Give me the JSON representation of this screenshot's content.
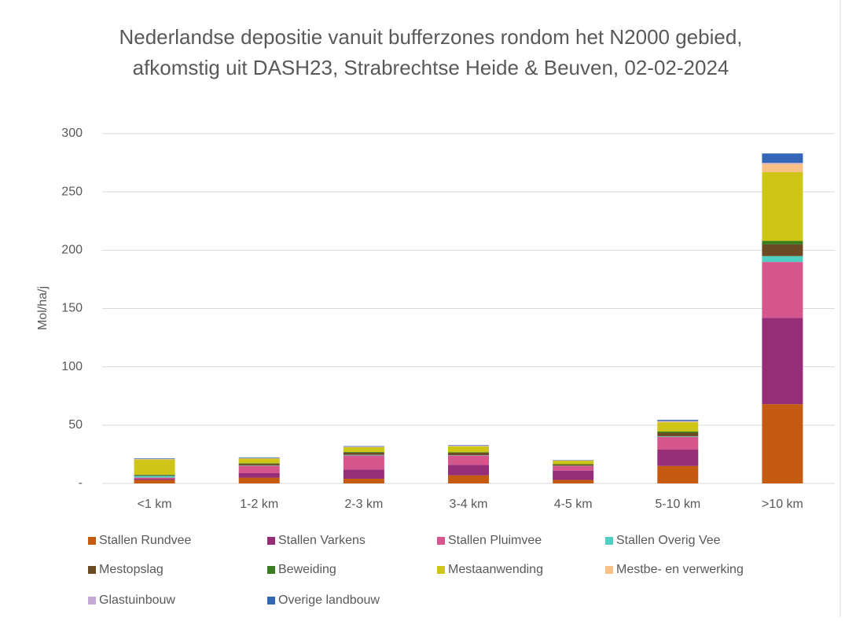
{
  "chart_data": {
    "type": "stacked-bar",
    "title": "Nederlandse depositie vanuit bufferzones rondom het N2000 gebied, afkomstig uit DASH23, Strabrechtse Heide & Beuven, 02-02-2024",
    "y_label": "Mol/ha/j",
    "categories": [
      "<1 km",
      "1-2 km",
      "2-3 km",
      "3-4 km",
      "4-5 km",
      "5-10 km",
      ">10 km"
    ],
    "series": [
      {
        "name": "Stallen Rundvee",
        "color": "#c55a11",
        "values": [
          3,
          5,
          4,
          7,
          3,
          15,
          68
        ]
      },
      {
        "name": "Stallen Varkens",
        "color": "#952d78",
        "values": [
          1,
          4,
          8,
          9,
          8,
          14,
          74
        ]
      },
      {
        "name": "Stallen Pluimvee",
        "color": "#d6558c",
        "values": [
          1,
          6,
          12,
          8,
          4,
          11,
          48
        ]
      },
      {
        "name": "Stallen Overig Vee",
        "color": "#4fcfc2",
        "values": [
          1.5,
          0.3,
          0.5,
          0.3,
          0.2,
          0.5,
          5
        ]
      },
      {
        "name": "Mestopslag",
        "color": "#6b4a24",
        "values": [
          0.5,
          1.5,
          2,
          2,
          1,
          3,
          10
        ]
      },
      {
        "name": "Beweiding",
        "color": "#3a7d1e",
        "values": [
          0.5,
          0.5,
          0.5,
          0.5,
          0.3,
          1,
          3
        ]
      },
      {
        "name": "Mestaanwending",
        "color": "#cec516",
        "values": [
          13,
          4,
          4,
          5,
          3,
          8,
          59
        ]
      },
      {
        "name": "Mestbe- en verwerking",
        "color": "#f9c085",
        "values": [
          0.3,
          0.3,
          0.3,
          0.3,
          0.2,
          0.5,
          7
        ]
      },
      {
        "name": "Glastuinbouw",
        "color": "#c3a9d6",
        "values": [
          0.2,
          0.2,
          0.2,
          0.2,
          0.1,
          0.5,
          1
        ]
      },
      {
        "name": "Overige landbouw",
        "color": "#3366b7",
        "values": [
          0.5,
          0.5,
          0.5,
          0.5,
          0.3,
          1,
          8
        ]
      }
    ],
    "ylim": [
      0,
      300
    ],
    "yticks": [
      {
        "value": 0,
        "label": "-"
      },
      50,
      100,
      150,
      200,
      250,
      300
    ],
    "grid": true,
    "legend": "bottom"
  }
}
